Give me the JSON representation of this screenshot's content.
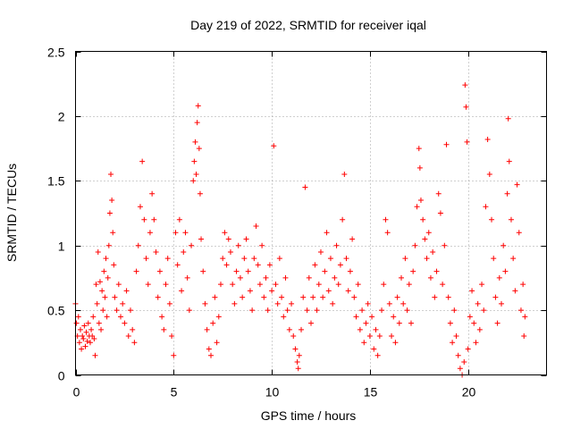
{
  "chart_data": {
    "type": "scatter",
    "title": "Day 219 of 2022, SRMTID for receiver iqal",
    "xlabel": "GPS time / hours",
    "ylabel": "SRMTID / TECUs",
    "xlim": [
      0,
      24
    ],
    "ylim": [
      0,
      2.5
    ],
    "xticks": [
      0,
      5,
      10,
      15,
      20
    ],
    "xtick_labels": [
      "0",
      "5",
      "10",
      "15",
      "20"
    ],
    "yticks": [
      0,
      0.5,
      1,
      1.5,
      2,
      2.5
    ],
    "ytick_labels": [
      "0",
      "0.5",
      "1",
      "1.5",
      "2",
      "2.5"
    ],
    "grid": true,
    "marker": "+",
    "series": [
      {
        "name": "SRMTID",
        "color": "#ff0000",
        "points": [
          [
            0.0,
            0.55
          ],
          [
            0.05,
            0.4
          ],
          [
            0.1,
            0.3
          ],
          [
            0.15,
            0.45
          ],
          [
            0.2,
            0.25
          ],
          [
            0.25,
            0.35
          ],
          [
            0.3,
            0.2
          ],
          [
            0.35,
            0.3
          ],
          [
            0.4,
            0.28
          ],
          [
            0.45,
            0.38
          ],
          [
            0.5,
            0.22
          ],
          [
            0.55,
            0.33
          ],
          [
            0.6,
            0.26
          ],
          [
            0.65,
            0.4
          ],
          [
            0.7,
            0.3
          ],
          [
            0.75,
            0.25
          ],
          [
            0.8,
            0.35
          ],
          [
            0.85,
            0.3
          ],
          [
            0.9,
            0.45
          ],
          [
            0.95,
            0.28
          ],
          [
            1.0,
            0.15
          ],
          [
            1.05,
            0.7
          ],
          [
            1.1,
            0.55
          ],
          [
            1.15,
            0.95
          ],
          [
            1.2,
            0.4
          ],
          [
            1.25,
            0.72
          ],
          [
            1.3,
            0.35
          ],
          [
            1.35,
            0.65
          ],
          [
            1.4,
            0.5
          ],
          [
            1.45,
            0.8
          ],
          [
            1.5,
            0.6
          ],
          [
            1.55,
            0.9
          ],
          [
            1.6,
            0.45
          ],
          [
            1.65,
            0.75
          ],
          [
            1.7,
            1.0
          ],
          [
            1.75,
            1.25
          ],
          [
            1.8,
            1.55
          ],
          [
            1.85,
            1.35
          ],
          [
            1.9,
            1.1
          ],
          [
            1.95,
            0.85
          ],
          [
            2.0,
            0.6
          ],
          [
            2.1,
            0.5
          ],
          [
            2.2,
            0.7
          ],
          [
            2.3,
            0.45
          ],
          [
            2.4,
            0.55
          ],
          [
            2.5,
            0.4
          ],
          [
            2.6,
            0.65
          ],
          [
            2.7,
            0.3
          ],
          [
            2.8,
            0.5
          ],
          [
            2.9,
            0.35
          ],
          [
            3.0,
            0.25
          ],
          [
            3.1,
            0.8
          ],
          [
            3.2,
            1.0
          ],
          [
            3.3,
            1.3
          ],
          [
            3.4,
            1.65
          ],
          [
            3.5,
            1.2
          ],
          [
            3.6,
            0.9
          ],
          [
            3.7,
            0.7
          ],
          [
            3.8,
            1.1
          ],
          [
            3.9,
            1.4
          ],
          [
            4.0,
            1.2
          ],
          [
            4.1,
            0.95
          ],
          [
            4.2,
            0.6
          ],
          [
            4.3,
            0.8
          ],
          [
            4.4,
            0.45
          ],
          [
            4.5,
            0.35
          ],
          [
            4.6,
            0.7
          ],
          [
            4.7,
            0.9
          ],
          [
            4.8,
            0.55
          ],
          [
            4.9,
            0.3
          ],
          [
            5.0,
            0.15
          ],
          [
            5.1,
            1.1
          ],
          [
            5.2,
            0.85
          ],
          [
            5.3,
            1.2
          ],
          [
            5.4,
            0.65
          ],
          [
            5.5,
            0.95
          ],
          [
            5.6,
            1.1
          ],
          [
            5.7,
            0.75
          ],
          [
            5.8,
            0.5
          ],
          [
            5.9,
            1.0
          ],
          [
            6.0,
            1.5
          ],
          [
            6.05,
            1.65
          ],
          [
            6.1,
            1.8
          ],
          [
            6.15,
            1.55
          ],
          [
            6.2,
            1.95
          ],
          [
            6.25,
            2.08
          ],
          [
            6.3,
            1.75
          ],
          [
            6.35,
            1.4
          ],
          [
            6.4,
            1.05
          ],
          [
            6.5,
            0.8
          ],
          [
            6.6,
            0.55
          ],
          [
            6.7,
            0.35
          ],
          [
            6.8,
            0.2
          ],
          [
            6.9,
            0.15
          ],
          [
            7.0,
            0.4
          ],
          [
            7.1,
            0.6
          ],
          [
            7.2,
            0.25
          ],
          [
            7.3,
            0.45
          ],
          [
            7.4,
            0.7
          ],
          [
            7.5,
            0.9
          ],
          [
            7.6,
            1.1
          ],
          [
            7.7,
            0.85
          ],
          [
            7.8,
            1.05
          ],
          [
            7.9,
            0.95
          ],
          [
            8.0,
            0.7
          ],
          [
            8.1,
            0.55
          ],
          [
            8.2,
            0.8
          ],
          [
            8.3,
            1.0
          ],
          [
            8.4,
            0.75
          ],
          [
            8.5,
            0.6
          ],
          [
            8.6,
            0.9
          ],
          [
            8.7,
            1.05
          ],
          [
            8.8,
            0.8
          ],
          [
            8.9,
            0.65
          ],
          [
            9.0,
            0.5
          ],
          [
            9.1,
            0.9
          ],
          [
            9.2,
            1.15
          ],
          [
            9.3,
            0.85
          ],
          [
            9.4,
            0.7
          ],
          [
            9.5,
            1.0
          ],
          [
            9.6,
            0.6
          ],
          [
            9.7,
            0.75
          ],
          [
            9.8,
            0.5
          ],
          [
            9.9,
            0.85
          ],
          [
            10.0,
            0.65
          ],
          [
            10.1,
            1.77
          ],
          [
            10.2,
            0.7
          ],
          [
            10.3,
            0.55
          ],
          [
            10.4,
            0.9
          ],
          [
            10.5,
            0.6
          ],
          [
            10.6,
            0.45
          ],
          [
            10.7,
            0.75
          ],
          [
            10.8,
            0.5
          ],
          [
            10.9,
            0.35
          ],
          [
            11.0,
            0.55
          ],
          [
            11.1,
            0.3
          ],
          [
            11.2,
            0.2
          ],
          [
            11.3,
            0.1
          ],
          [
            11.35,
            0.05
          ],
          [
            11.4,
            0.15
          ],
          [
            11.5,
            0.35
          ],
          [
            11.6,
            0.6
          ],
          [
            11.7,
            1.45
          ],
          [
            11.8,
            0.5
          ],
          [
            11.9,
            0.75
          ],
          [
            12.0,
            0.4
          ],
          [
            12.1,
            0.6
          ],
          [
            12.2,
            0.85
          ],
          [
            12.3,
            0.5
          ],
          [
            12.4,
            0.7
          ],
          [
            12.5,
            0.95
          ],
          [
            12.6,
            0.6
          ],
          [
            12.7,
            0.8
          ],
          [
            12.8,
            1.1
          ],
          [
            12.9,
            0.65
          ],
          [
            13.0,
            0.9
          ],
          [
            13.1,
            0.55
          ],
          [
            13.2,
            0.75
          ],
          [
            13.3,
            1.0
          ],
          [
            13.4,
            0.7
          ],
          [
            13.5,
            0.85
          ],
          [
            13.6,
            1.2
          ],
          [
            13.7,
            1.55
          ],
          [
            13.8,
            0.9
          ],
          [
            13.9,
            0.65
          ],
          [
            14.0,
            0.8
          ],
          [
            14.1,
            1.05
          ],
          [
            14.2,
            0.6
          ],
          [
            14.3,
            0.45
          ],
          [
            14.4,
            0.7
          ],
          [
            14.5,
            0.35
          ],
          [
            14.6,
            0.5
          ],
          [
            14.7,
            0.25
          ],
          [
            14.8,
            0.4
          ],
          [
            14.9,
            0.55
          ],
          [
            15.0,
            0.3
          ],
          [
            15.1,
            0.45
          ],
          [
            15.2,
            0.2
          ],
          [
            15.3,
            0.35
          ],
          [
            15.4,
            0.15
          ],
          [
            15.5,
            0.3
          ],
          [
            15.6,
            0.5
          ],
          [
            15.7,
            0.7
          ],
          [
            15.8,
            1.2
          ],
          [
            15.9,
            1.1
          ],
          [
            16.0,
            0.55
          ],
          [
            16.1,
            0.3
          ],
          [
            16.2,
            0.45
          ],
          [
            16.3,
            0.25
          ],
          [
            16.4,
            0.6
          ],
          [
            16.5,
            0.4
          ],
          [
            16.6,
            0.75
          ],
          [
            16.7,
            0.55
          ],
          [
            16.8,
            0.9
          ],
          [
            16.9,
            0.5
          ],
          [
            17.0,
            0.7
          ],
          [
            17.1,
            0.4
          ],
          [
            17.2,
            0.8
          ],
          [
            17.3,
            1.0
          ],
          [
            17.4,
            1.3
          ],
          [
            17.5,
            1.75
          ],
          [
            17.55,
            1.6
          ],
          [
            17.6,
            1.35
          ],
          [
            17.7,
            1.2
          ],
          [
            17.8,
            1.05
          ],
          [
            17.9,
            0.9
          ],
          [
            18.0,
            1.1
          ],
          [
            18.1,
            0.75
          ],
          [
            18.2,
            0.95
          ],
          [
            18.3,
            0.6
          ],
          [
            18.4,
            0.8
          ],
          [
            18.5,
            1.4
          ],
          [
            18.6,
            1.25
          ],
          [
            18.7,
            0.7
          ],
          [
            18.8,
            1.0
          ],
          [
            18.9,
            1.78
          ],
          [
            19.0,
            0.6
          ],
          [
            19.1,
            0.4
          ],
          [
            19.2,
            0.25
          ],
          [
            19.3,
            0.5
          ],
          [
            19.4,
            0.3
          ],
          [
            19.5,
            0.15
          ],
          [
            19.6,
            0.05
          ],
          [
            19.7,
            0.0
          ],
          [
            19.8,
            0.1
          ],
          [
            19.85,
            2.24
          ],
          [
            19.9,
            2.07
          ],
          [
            19.95,
            1.8
          ],
          [
            20.0,
            0.2
          ],
          [
            20.1,
            0.45
          ],
          [
            20.2,
            0.65
          ],
          [
            20.3,
            0.4
          ],
          [
            20.4,
            0.25
          ],
          [
            20.5,
            0.55
          ],
          [
            20.6,
            0.35
          ],
          [
            20.7,
            0.7
          ],
          [
            20.8,
            0.5
          ],
          [
            20.9,
            1.3
          ],
          [
            21.0,
            1.82
          ],
          [
            21.1,
            1.55
          ],
          [
            21.2,
            1.2
          ],
          [
            21.3,
            0.9
          ],
          [
            21.4,
            0.6
          ],
          [
            21.5,
            0.4
          ],
          [
            21.6,
            0.75
          ],
          [
            21.7,
            0.55
          ],
          [
            21.8,
            1.0
          ],
          [
            21.9,
            0.8
          ],
          [
            22.0,
            1.4
          ],
          [
            22.05,
            1.98
          ],
          [
            22.1,
            1.65
          ],
          [
            22.2,
            1.2
          ],
          [
            22.3,
            0.9
          ],
          [
            22.4,
            0.65
          ],
          [
            22.5,
            1.47
          ],
          [
            22.6,
            1.1
          ],
          [
            22.7,
            0.5
          ],
          [
            22.8,
            0.7
          ],
          [
            22.85,
            0.3
          ],
          [
            22.9,
            0.45
          ]
        ]
      }
    ]
  }
}
